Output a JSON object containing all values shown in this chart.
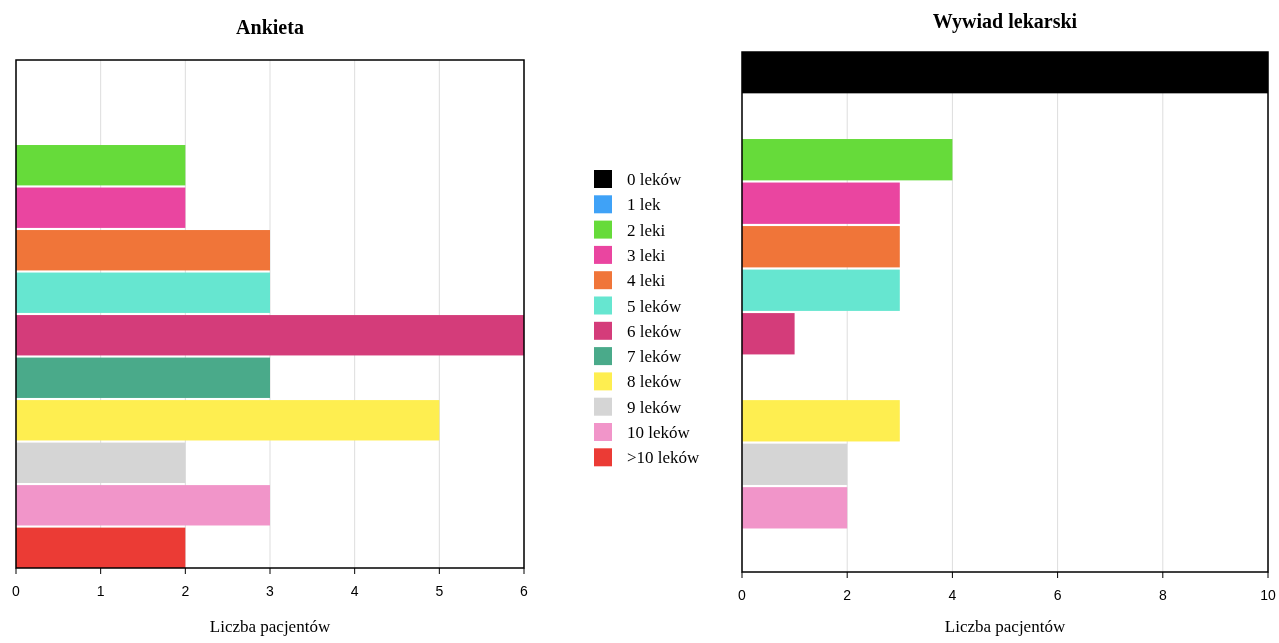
{
  "chart_data": [
    {
      "type": "bar",
      "orientation": "horizontal",
      "title": "Ankieta",
      "xlabel": "Liczba pacjentów",
      "categories": [
        null
      ],
      "xlim": [
        0,
        6
      ],
      "xticks": [
        0,
        1,
        2,
        3,
        4,
        5,
        6
      ],
      "grid": "x",
      "legend": "right",
      "series": [
        {
          "name": "0 leków",
          "color": "#000000",
          "values": [
            0
          ]
        },
        {
          "name": "1 lek",
          "color": "#3fa2f7",
          "values": [
            0
          ]
        },
        {
          "name": "2 leki",
          "color": "#66db3a",
          "values": [
            2
          ]
        },
        {
          "name": "3 leki",
          "color": "#ea45a0",
          "values": [
            2
          ]
        },
        {
          "name": "4 leki",
          "color": "#f07539",
          "values": [
            3
          ]
        },
        {
          "name": "5 leków",
          "color": "#66e6d0",
          "values": [
            3
          ]
        },
        {
          "name": "6 leków",
          "color": "#d43c7a",
          "values": [
            6
          ]
        },
        {
          "name": "7 leków",
          "color": "#4aaa8a",
          "values": [
            3
          ]
        },
        {
          "name": "8 leków",
          "color": "#feee50",
          "values": [
            5
          ]
        },
        {
          "name": "9 leków",
          "color": "#d5d5d5",
          "values": [
            2
          ]
        },
        {
          "name": "10 leków",
          "color": "#f195c9",
          "values": [
            3
          ]
        },
        {
          "name": ">10 leków",
          "color": "#eb3b35",
          "values": [
            2
          ]
        }
      ]
    },
    {
      "type": "bar",
      "orientation": "horizontal",
      "title": "Wywiad lekarski",
      "xlabel": "Liczba pacjentów",
      "categories": [
        null
      ],
      "xlim": [
        0,
        10
      ],
      "xticks": [
        0,
        2,
        4,
        6,
        8,
        10
      ],
      "grid": "x",
      "series": [
        {
          "color": "#000000",
          "values": [
            10
          ]
        },
        {
          "color": "#3fa2f7",
          "values": [
            0
          ]
        },
        {
          "color": "#66db3a",
          "values": [
            4
          ]
        },
        {
          "color": "#ea45a0",
          "values": [
            3
          ]
        },
        {
          "color": "#f07539",
          "values": [
            3
          ]
        },
        {
          "color": "#66e6d0",
          "values": [
            3
          ]
        },
        {
          "color": "#d43c7a",
          "values": [
            1
          ]
        },
        {
          "color": "#4aaa8a",
          "values": [
            0
          ]
        },
        {
          "color": "#feee50",
          "values": [
            3
          ]
        },
        {
          "color": "#d5d5d5",
          "values": [
            2
          ]
        },
        {
          "color": "#f195c9",
          "values": [
            2
          ]
        },
        {
          "color": "#eb3b35",
          "values": [
            0
          ]
        }
      ]
    }
  ]
}
